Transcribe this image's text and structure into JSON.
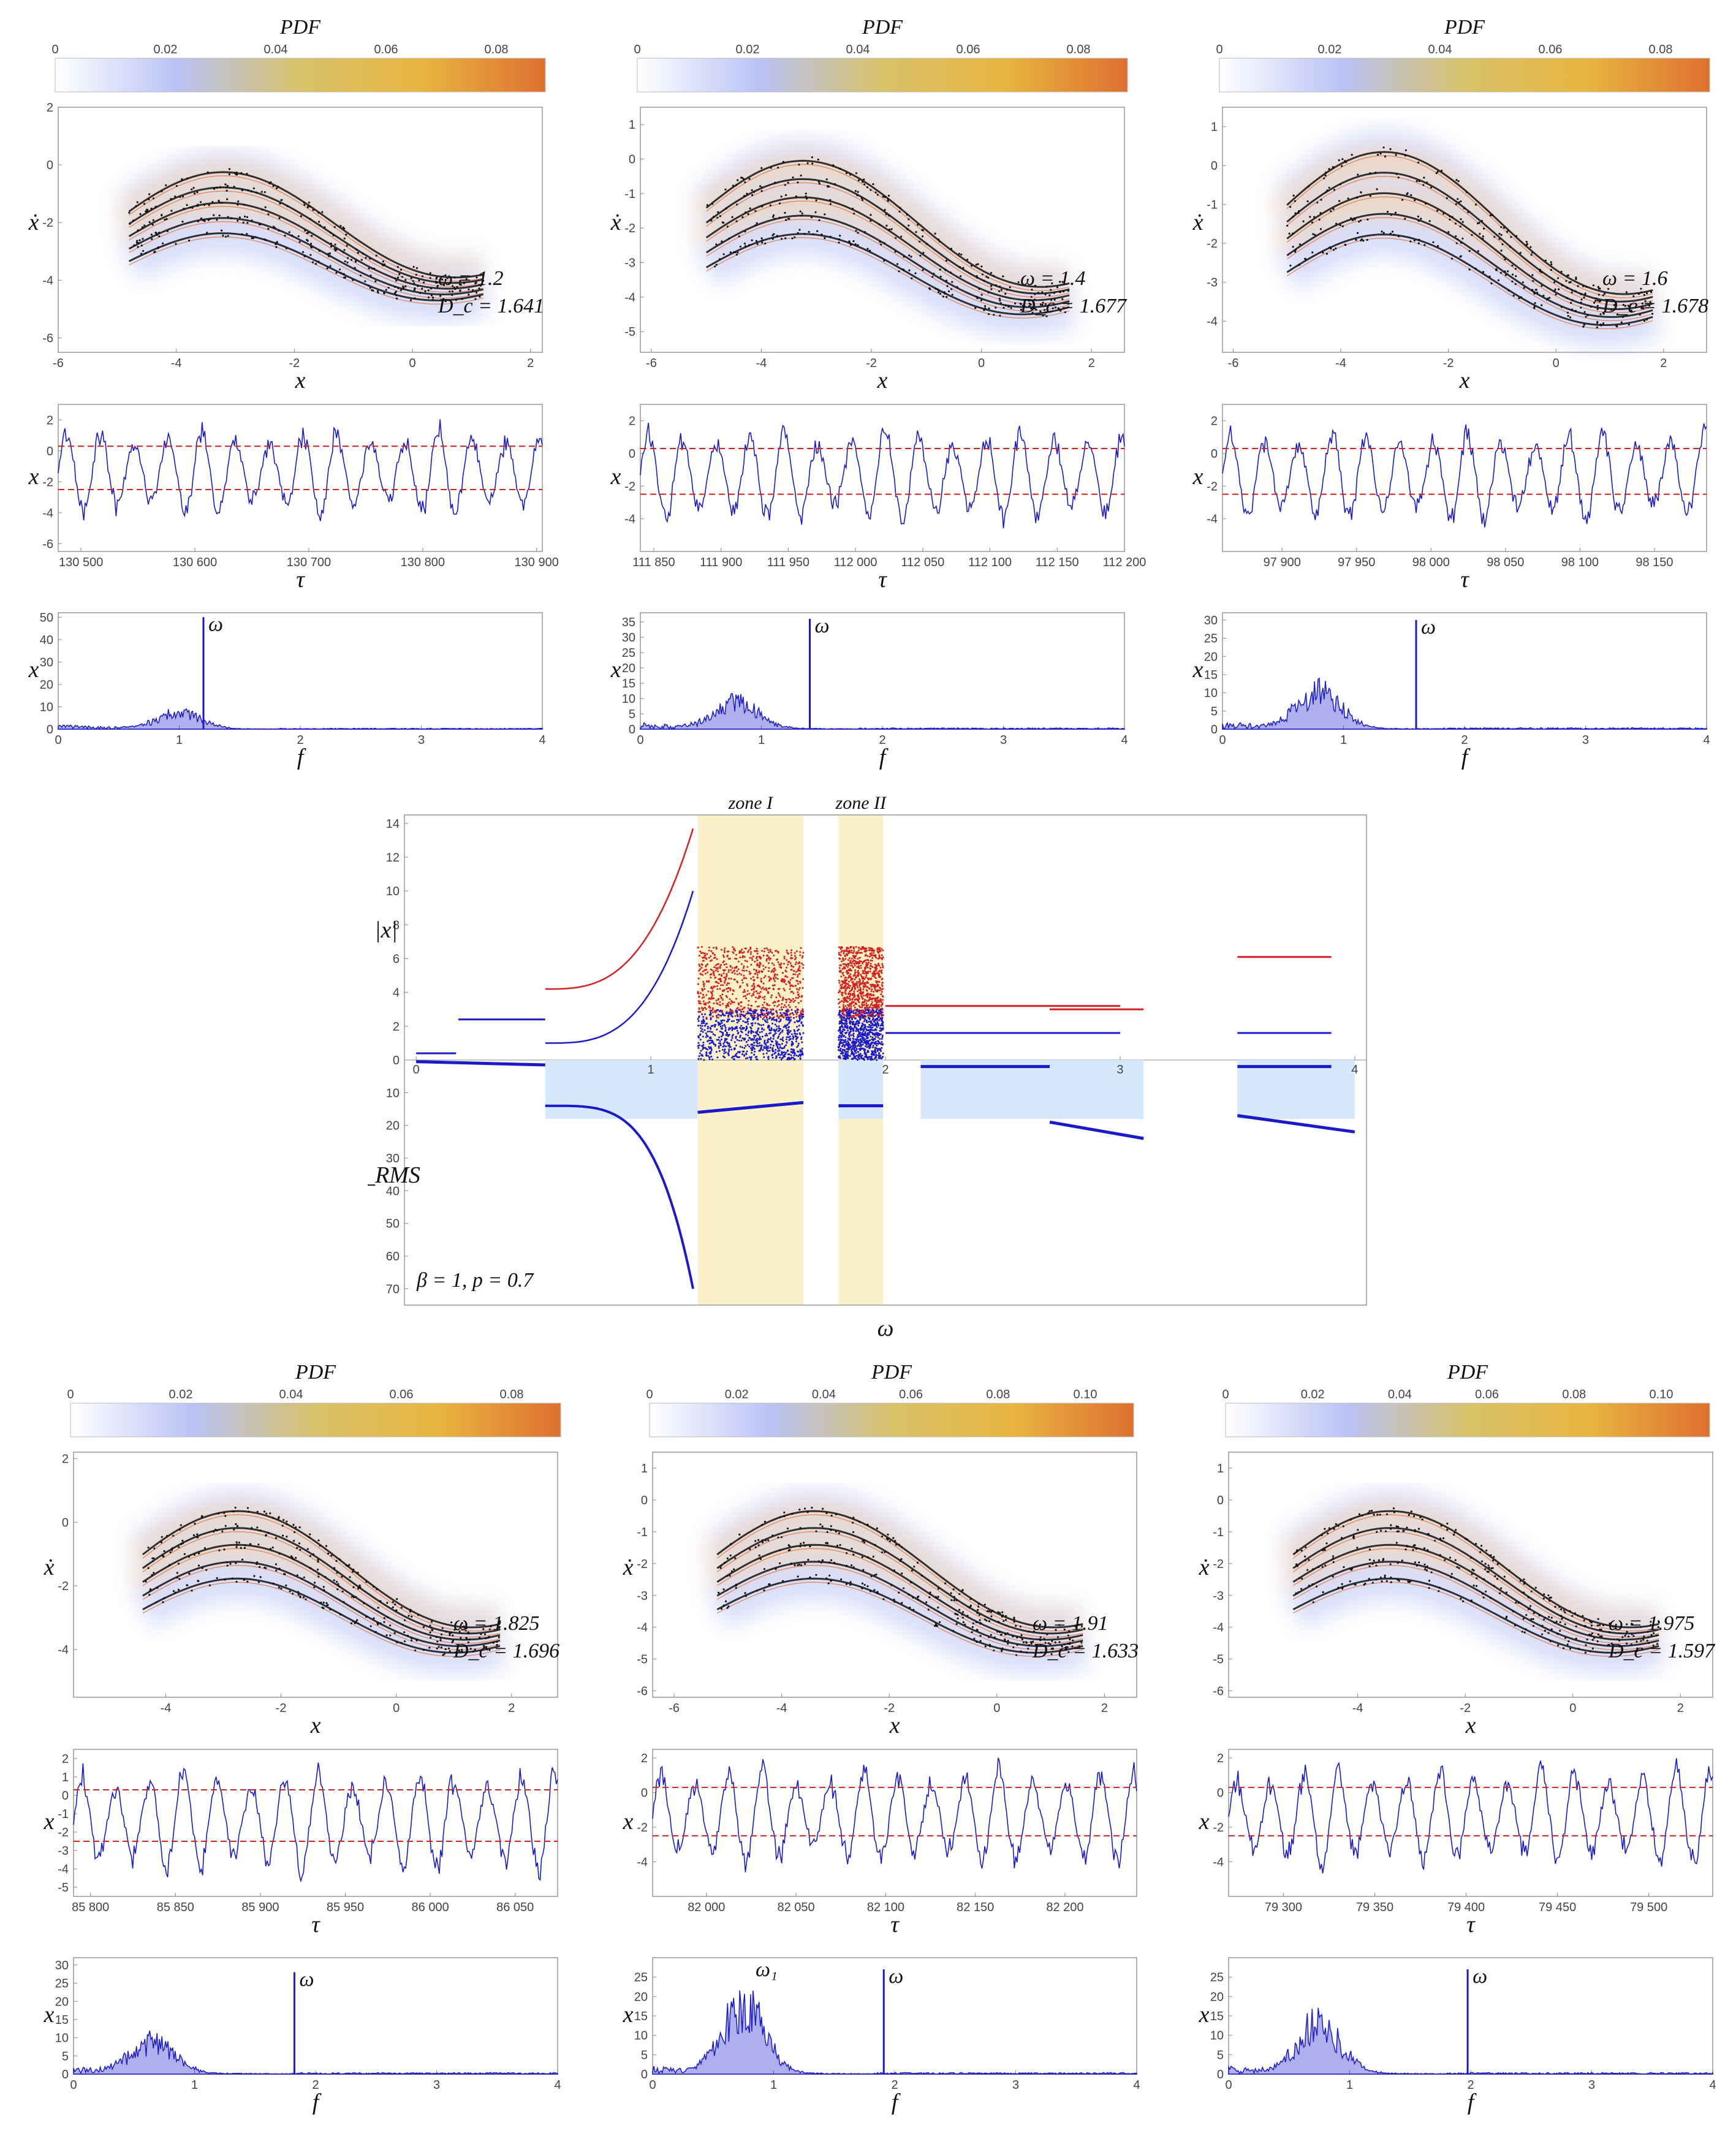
{
  "colors": {
    "trace": "#1a1acc",
    "threshold": "#d42020",
    "attractor": "#111111",
    "zone_fill": "#fbf1c8",
    "urms_fill": "#d6e8fb",
    "colorbar": [
      "#ffffff",
      "#b9c2f5",
      "#d8c26a",
      "#e8b540",
      "#de7030"
    ]
  },
  "labels": {
    "pdf": "PDF",
    "x": "x",
    "xdot": "ẋ",
    "tau": "τ",
    "f": "f",
    "omega": "ω",
    "omega1": "ω₁",
    "abs_x": "|x|",
    "urms": "u_RMS",
    "params": "β = 1, p = 0.7",
    "zone1": "zone I",
    "zone2": "zone II"
  },
  "chart_data": [
    {
      "type": "scatter",
      "panel": "top-1",
      "omega_label": "ω = 1.2",
      "dc_label": "D_c = 1.641",
      "colorbar_ticks": [
        "0",
        "0.02",
        "0.04",
        "0.06",
        "0.08"
      ],
      "phase": {
        "xlim": [
          -6,
          2.2
        ],
        "ylim": [
          -6.5,
          2
        ],
        "xticks": [
          -6,
          -4,
          -2,
          0,
          2
        ],
        "yticks": [
          2,
          0,
          -2,
          -4,
          -6
        ]
      },
      "time": {
        "xlim": [
          130480,
          130905
        ],
        "ylim": [
          -6.5,
          3
        ],
        "xticks": [
          130500,
          130600,
          130700,
          130800,
          130900
        ],
        "yticks": [
          2,
          0,
          -2,
          -4,
          -6
        ],
        "xtick_labels": [
          "130 500",
          "130 600",
          "130 700",
          "130 800",
          "130 900"
        ],
        "thresholds": [
          0.3,
          -2.5
        ]
      },
      "spectrum": {
        "xlim": [
          0,
          4
        ],
        "ylim": [
          0,
          52
        ],
        "xticks": [
          0,
          1,
          2,
          3,
          4
        ],
        "yticks": [
          0,
          10,
          20,
          30,
          40,
          50
        ],
        "peak_f": 1.2,
        "peak_amp": 50,
        "broad_center": 1.0,
        "broad_amp": 10
      }
    },
    {
      "type": "scatter",
      "panel": "top-2",
      "omega_label": "ω = 1.4",
      "dc_label": "D_c = 1.677",
      "colorbar_ticks": [
        "0",
        "0.02",
        "0.04",
        "0.06",
        "0.08"
      ],
      "phase": {
        "xlim": [
          -6.2,
          2.6
        ],
        "ylim": [
          -5.6,
          1.5
        ],
        "xticks": [
          -6,
          -4,
          -2,
          0,
          2
        ],
        "yticks": [
          1,
          0,
          -1,
          -2,
          -3,
          -4,
          -5
        ]
      },
      "time": {
        "xlim": [
          111840,
          112200
        ],
        "ylim": [
          -6,
          3
        ],
        "xticks": [
          111850,
          111900,
          111950,
          112000,
          112050,
          112100,
          112150,
          112200
        ],
        "yticks": [
          2,
          0,
          -2,
          -4
        ],
        "xtick_labels": [
          "111 850",
          "111 900",
          "111 950",
          "112 000",
          "112 050",
          "112 100",
          "112 150",
          "112 200"
        ],
        "thresholds": [
          0.3,
          -2.5
        ]
      },
      "spectrum": {
        "xlim": [
          0,
          4
        ],
        "ylim": [
          0,
          38
        ],
        "xticks": [
          0,
          1,
          2,
          3,
          4
        ],
        "yticks": [
          0,
          5,
          10,
          15,
          20,
          25,
          30,
          35
        ],
        "peak_f": 1.4,
        "peak_amp": 36,
        "broad_center": 0.8,
        "broad_amp": 12
      }
    },
    {
      "type": "scatter",
      "panel": "top-3",
      "omega_label": "ω = 1.6",
      "dc_label": "D_c = 1.678",
      "colorbar_ticks": [
        "0",
        "0.02",
        "0.04",
        "0.06",
        "0.08"
      ],
      "phase": {
        "xlim": [
          -6.2,
          2.8
        ],
        "ylim": [
          -4.8,
          1.5
        ],
        "xticks": [
          -6,
          -4,
          -2,
          0,
          2
        ],
        "yticks": [
          1,
          0,
          -1,
          -2,
          -3,
          -4
        ]
      },
      "time": {
        "xlim": [
          97860,
          98185
        ],
        "ylim": [
          -6,
          3
        ],
        "xticks": [
          97900,
          97950,
          98000,
          98050,
          98100,
          98150
        ],
        "yticks": [
          2,
          0,
          -2,
          -4
        ],
        "xtick_labels": [
          "97 900",
          "97 950",
          "98 000",
          "98 050",
          "98 100",
          "98 150"
        ],
        "thresholds": [
          0.3,
          -2.5
        ]
      },
      "spectrum": {
        "xlim": [
          0,
          4
        ],
        "ylim": [
          0,
          32
        ],
        "xticks": [
          0,
          1,
          2,
          3,
          4
        ],
        "yticks": [
          0,
          5,
          10,
          15,
          20,
          25,
          30
        ],
        "peak_f": 1.6,
        "peak_amp": 30,
        "broad_center": 0.8,
        "broad_amp": 14
      }
    },
    {
      "type": "scatter",
      "panel": "middle",
      "xlabel": "ω",
      "bifurcation": {
        "xlim": [
          -0.05,
          4.05
        ],
        "ylim": [
          0,
          14.5
        ],
        "yticks": [
          0,
          2,
          4,
          6,
          8,
          10,
          12,
          14
        ],
        "xticks": [
          0,
          1,
          2,
          3,
          4
        ],
        "zones": [
          {
            "from": 1.2,
            "to": 1.65
          },
          {
            "from": 1.8,
            "to": 1.99
          }
        ]
      },
      "urms": {
        "ylim": [
          0,
          75
        ],
        "yticks": [
          10,
          20,
          30,
          40,
          50,
          60,
          70
        ]
      }
    },
    {
      "type": "scatter",
      "panel": "bottom-1",
      "omega_label": "ω = 1.825",
      "dc_label": "D_c = 1.696",
      "colorbar_ticks": [
        "0",
        "0.02",
        "0.04",
        "0.06",
        "0.08"
      ],
      "phase": {
        "xlim": [
          -5.6,
          2.8
        ],
        "ylim": [
          -5.5,
          2.2
        ],
        "xticks": [
          -4,
          -2,
          0,
          2
        ],
        "yticks": [
          2,
          0,
          -2,
          -4
        ]
      },
      "time": {
        "xlim": [
          85790,
          86075
        ],
        "ylim": [
          -5.5,
          2.5
        ],
        "xticks": [
          85800,
          85850,
          85900,
          85950,
          86000,
          86050
        ],
        "yticks": [
          2,
          1,
          0,
          -1,
          -2,
          -3,
          -4,
          -5
        ],
        "xtick_labels": [
          "85 800",
          "85 850",
          "85 900",
          "85 950",
          "86 000",
          "86 050"
        ],
        "thresholds": [
          0.3,
          -2.5
        ]
      },
      "spectrum": {
        "xlim": [
          0,
          4
        ],
        "ylim": [
          0,
          32
        ],
        "xticks": [
          0,
          1,
          2,
          3,
          4
        ],
        "yticks": [
          0,
          5,
          10,
          15,
          20,
          25,
          30
        ],
        "peak_f": 1.825,
        "peak_amp": 28,
        "broad_center": 0.65,
        "broad_amp": 12
      }
    },
    {
      "type": "scatter",
      "panel": "bottom-2",
      "omega_label": "ω = 1.91",
      "dc_label": "D_c = 1.633",
      "colorbar_ticks": [
        "0",
        "0.02",
        "0.04",
        "0.06",
        "0.08",
        "0.10"
      ],
      "phase": {
        "xlim": [
          -6.4,
          2.6
        ],
        "ylim": [
          -6.2,
          1.5
        ],
        "xticks": [
          -6,
          -4,
          -2,
          0,
          2
        ],
        "yticks": [
          1,
          0,
          -1,
          -2,
          -3,
          -4,
          -5,
          -6
        ]
      },
      "time": {
        "xlim": [
          81970,
          82240
        ],
        "ylim": [
          -6,
          2.5
        ],
        "xticks": [
          82000,
          82050,
          82100,
          82150,
          82200
        ],
        "yticks": [
          2,
          0,
          -2,
          -4
        ],
        "xtick_labels": [
          "82 000",
          "82 050",
          "82 100",
          "82 150",
          "82 200"
        ],
        "thresholds": [
          0.3,
          -2.5
        ]
      },
      "spectrum": {
        "xlim": [
          0,
          4
        ],
        "ylim": [
          0,
          30
        ],
        "xticks": [
          0,
          1,
          2,
          3,
          4
        ],
        "yticks": [
          0,
          5,
          10,
          15,
          20,
          25
        ],
        "peak_f": 1.91,
        "peak_amp": 27,
        "broad_center": 0.75,
        "broad_amp": 24,
        "secondary_label": "ω₁",
        "secondary_f": 0.8
      }
    },
    {
      "type": "scatter",
      "panel": "bottom-3",
      "omega_label": "ω = 1.975",
      "dc_label": "D_c = 1.597",
      "colorbar_ticks": [
        "0",
        "0.02",
        "0.04",
        "0.06",
        "0.08",
        "0.10"
      ],
      "phase": {
        "xlim": [
          -6.4,
          2.6
        ],
        "ylim": [
          -6.2,
          1.5
        ],
        "xticks": [
          -4,
          -2,
          0,
          2
        ],
        "yticks": [
          1,
          0,
          -1,
          -2,
          -3,
          -4,
          -5,
          -6
        ]
      },
      "time": {
        "xlim": [
          79270,
          79535
        ],
        "ylim": [
          -6,
          2.5
        ],
        "xticks": [
          79300,
          79350,
          79400,
          79450,
          79500
        ],
        "yticks": [
          2,
          0,
          -2,
          -4
        ],
        "xtick_labels": [
          "79 300",
          "79 350",
          "79 400",
          "79 450",
          "79 500"
        ],
        "thresholds": [
          0.3,
          -2.5
        ]
      },
      "spectrum": {
        "xlim": [
          0,
          4
        ],
        "ylim": [
          0,
          30
        ],
        "xticks": [
          0,
          1,
          2,
          3,
          4
        ],
        "yticks": [
          0,
          5,
          10,
          15,
          20,
          25
        ],
        "peak_f": 1.975,
        "peak_amp": 27,
        "broad_center": 0.75,
        "broad_amp": 18
      }
    }
  ]
}
